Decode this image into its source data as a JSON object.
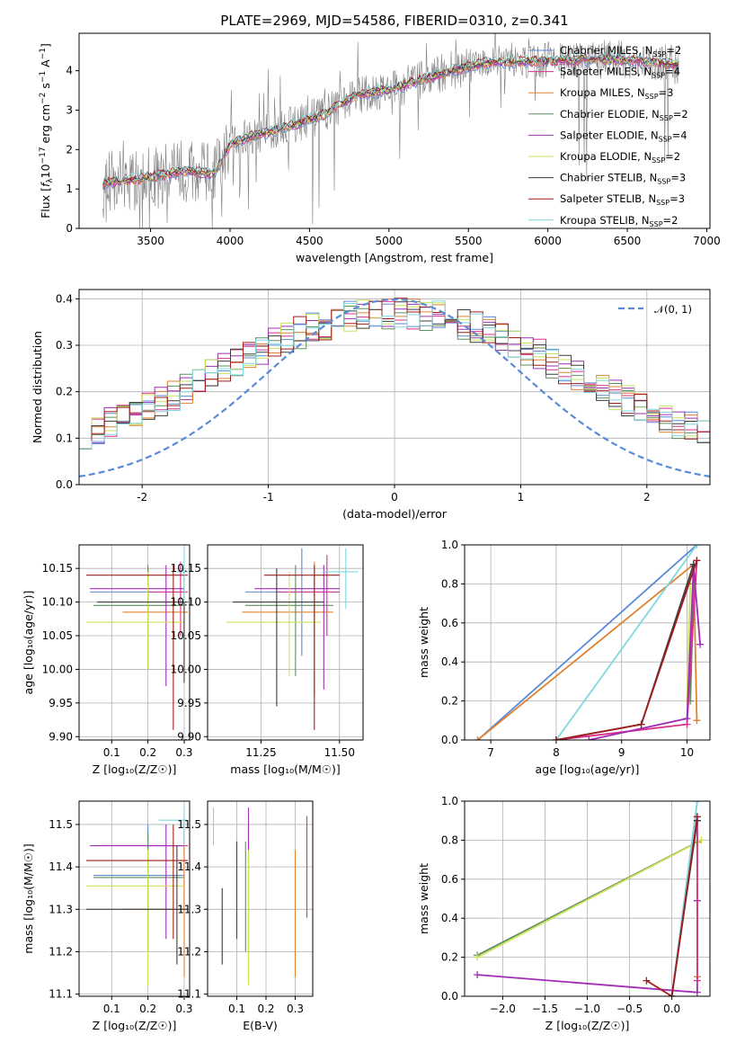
{
  "colors": {
    "chabrier_miles": "#5b8ad6",
    "salpeter_miles": "#d92f8a",
    "kroupa_miles": "#e08330",
    "chabrier_elodie": "#5e8f5e",
    "salpeter_elodie": "#a02db5",
    "kroupa_elodie": "#c9e25a",
    "chabrier_stelib": "#3d3d3d",
    "salpeter_stelib": "#a11c1c",
    "kroupa_stelib": "#7fd8df",
    "data": "#808080",
    "normal": "#5b8ad6"
  },
  "chart_data": [
    {
      "id": "spectrum",
      "type": "line",
      "title": "PLATE=2969, MJD=54586, FIBERID=0310, z=0.341",
      "xlabel": "wavelength [Angstrom, rest frame]",
      "ylabel_parts": [
        "Flux [",
        "f",
        "λ",
        "10",
        "−17",
        " erg cm",
        "−2",
        " s",
        "−1",
        " A",
        "−1",
        "]"
      ],
      "xlim": [
        3050,
        7020
      ],
      "ylim": [
        0,
        4.95
      ],
      "xticks": [
        3500,
        4000,
        4500,
        5000,
        5500,
        6000,
        6500,
        7000
      ],
      "yticks": [
        0,
        1,
        2,
        3,
        4
      ],
      "data_range": [
        3200,
        6830
      ],
      "model_key_points": {
        "x": [
          3200,
          3500,
          3700,
          3900,
          4000,
          4100,
          4300,
          4600,
          4800,
          5000,
          5300,
          5600,
          6000,
          6400,
          6830
        ],
        "y": [
          1.15,
          1.3,
          1.45,
          1.4,
          2.15,
          2.3,
          2.5,
          2.9,
          3.4,
          3.5,
          3.9,
          4.2,
          4.25,
          4.3,
          4.15
        ]
      },
      "legend": [
        {
          "key": "chabrier_miles",
          "text": "Chabrier MILES, N",
          "n": "2"
        },
        {
          "key": "salpeter_miles",
          "text": "Salpeter MILES, N",
          "n": "4"
        },
        {
          "key": "kroupa_miles",
          "text": "Kroupa MILES, N",
          "n": "3"
        },
        {
          "key": "chabrier_elodie",
          "text": "Chabrier ELODIE, N",
          "n": "2"
        },
        {
          "key": "salpeter_elodie",
          "text": "Salpeter ELODIE, N",
          "n": "4"
        },
        {
          "key": "kroupa_elodie",
          "text": "Kroupa ELODIE, N",
          "n": "2"
        },
        {
          "key": "chabrier_stelib",
          "text": "Chabrier STELIB, N",
          "n": "3"
        },
        {
          "key": "salpeter_stelib",
          "text": "Salpeter STELIB, N",
          "n": "3"
        },
        {
          "key": "kroupa_stelib",
          "text": "Kroupa STELIB, N",
          "n": "2"
        }
      ],
      "legend_sub": "SSP",
      "legend_placement": "upper right"
    },
    {
      "id": "residuals",
      "type": "line",
      "title": "",
      "xlabel": "(data-model)/error",
      "ylabel": "Normed distribution",
      "xlim": [
        -2.5,
        2.5
      ],
      "ylim": [
        0,
        0.42
      ],
      "xticks": [
        -2,
        -1,
        0,
        1,
        2
      ],
      "yticks": [
        0.0,
        0.1,
        0.2,
        0.3,
        0.4
      ],
      "ytick_labels": [
        "0.0",
        "0.1",
        "0.2",
        "0.3",
        "0.4"
      ],
      "grid": true,
      "bins": 50,
      "normal_curve": {
        "mean": 0,
        "sigma": 1
      },
      "legend": [
        {
          "text": "𝒩(0, 1)",
          "style": "dashed"
        }
      ],
      "legend_placement": "upper right"
    },
    {
      "id": "age_vs_Z",
      "type": "scatter",
      "xlabel": "Z [log₁₀(Z/Z☉)]",
      "ylabel": "age  [log₁₀(age/yr)]",
      "xlim": [
        0.01,
        0.315
      ],
      "ylim": [
        9.895,
        10.185
      ],
      "xticks": [
        0.1,
        0.2,
        0.3
      ],
      "yticks": [
        9.9,
        9.95,
        10.0,
        10.05,
        10.1,
        10.15
      ],
      "ytick_labels": [
        "9.90",
        "9.95",
        "10.00",
        "10.05",
        "10.10",
        "10.15"
      ],
      "grid": true,
      "points": [
        {
          "k": "chabrier_miles",
          "x": 0.2,
          "y": 10.115,
          "xe": [
            0.04,
            0.3
          ],
          "ye": [
            10.0,
            10.15
          ]
        },
        {
          "k": "salpeter_miles",
          "x": 0.29,
          "y": 10.115,
          "xe": [
            0.2,
            0.31
          ],
          "ye": [
            10.05,
            10.16
          ]
        },
        {
          "k": "kroupa_miles",
          "x": 0.3,
          "y": 10.085,
          "xe": [
            0.13,
            0.31
          ],
          "ye": [
            9.99,
            10.15
          ]
        },
        {
          "k": "chabrier_elodie",
          "x": 0.2,
          "y": 10.095,
          "xe": [
            0.05,
            0.3
          ],
          "ye": [
            10.0,
            10.155
          ]
        },
        {
          "k": "salpeter_elodie",
          "x": 0.25,
          "y": 10.12,
          "xe": [
            0.04,
            0.3
          ],
          "ye": [
            9.975,
            10.155
          ]
        },
        {
          "k": "kroupa_elodie",
          "x": 0.2,
          "y": 10.07,
          "xe": [
            0.03,
            0.3
          ],
          "ye": [
            10.0,
            10.145
          ]
        },
        {
          "k": "chabrier_stelib",
          "x": 0.3,
          "y": 10.1,
          "xe": [
            0.06,
            0.31
          ],
          "ye": [
            9.98,
            10.15
          ]
        },
        {
          "k": "salpeter_stelib",
          "x": 0.27,
          "y": 10.14,
          "xe": [
            0.03,
            0.31
          ],
          "ye": [
            9.91,
            10.155
          ]
        },
        {
          "k": "kroupa_stelib",
          "x": 0.3,
          "y": 10.145,
          "xe": [
            0.28,
            0.31
          ],
          "ye": [
            10.1,
            10.18
          ]
        }
      ]
    },
    {
      "id": "age_vs_mass",
      "type": "scatter",
      "xlabel": "mass [log₁₀(M/M☉)]",
      "ylabel": "",
      "xlim": [
        11.08,
        11.575
      ],
      "ylim": [
        9.895,
        10.185
      ],
      "xticks": [
        11.25,
        11.5
      ],
      "xtick_labels": [
        "11.25",
        "11.50"
      ],
      "yticks": [
        9.9,
        9.95,
        10.0,
        10.05,
        10.1,
        10.15
      ],
      "ytick_labels": [
        "9.90",
        "9.95",
        "10.00",
        "10.05",
        "10.10",
        "10.15"
      ],
      "grid": true,
      "points": [
        {
          "k": "chabrier_miles",
          "x": 11.38,
          "y": 10.115,
          "xe": [
            11.2,
            11.5
          ],
          "ye": [
            10.02,
            10.18
          ]
        },
        {
          "k": "salpeter_miles",
          "x": 11.46,
          "y": 10.115,
          "xe": [
            11.3,
            11.5
          ],
          "ye": [
            10.05,
            10.17
          ]
        },
        {
          "k": "kroupa_miles",
          "x": 11.42,
          "y": 10.085,
          "xe": [
            11.19,
            11.48
          ],
          "ye": [
            9.96,
            10.16
          ]
        },
        {
          "k": "chabrier_elodie",
          "x": 11.36,
          "y": 10.095,
          "xe": [
            11.2,
            11.48
          ],
          "ye": [
            9.99,
            10.155
          ]
        },
        {
          "k": "salpeter_elodie",
          "x": 11.45,
          "y": 10.12,
          "xe": [
            11.23,
            11.5
          ],
          "ye": [
            9.97,
            10.155
          ]
        },
        {
          "k": "kroupa_elodie",
          "x": 11.34,
          "y": 10.07,
          "xe": [
            11.14,
            11.44
          ],
          "ye": [
            9.99,
            10.145
          ]
        },
        {
          "k": "chabrier_stelib",
          "x": 11.3,
          "y": 10.1,
          "xe": [
            11.16,
            11.45
          ],
          "ye": [
            9.945,
            10.15
          ]
        },
        {
          "k": "salpeter_stelib",
          "x": 11.42,
          "y": 10.14,
          "xe": [
            11.26,
            11.5
          ],
          "ye": [
            9.91,
            10.155
          ]
        },
        {
          "k": "kroupa_stelib",
          "x": 11.52,
          "y": 10.145,
          "xe": [
            11.45,
            11.56
          ],
          "ye": [
            10.09,
            10.18
          ]
        }
      ]
    },
    {
      "id": "weight_vs_age",
      "type": "line",
      "xlabel": "age  [log₁₀(age/yr)]",
      "ylabel": "mass weight",
      "xlim": [
        6.6,
        10.35
      ],
      "ylim": [
        0,
        1
      ],
      "xticks": [
        7,
        8,
        9,
        10
      ],
      "yticks": [
        0.0,
        0.2,
        0.4,
        0.6,
        0.8,
        1.0
      ],
      "ytick_labels": [
        "0.0",
        "0.2",
        "0.4",
        "0.6",
        "0.8",
        "1.0"
      ],
      "grid": true,
      "series": [
        {
          "k": "chabrier_miles",
          "x": [
            6.8,
            10.15
          ],
          "y": [
            0.0,
            1.0
          ]
        },
        {
          "k": "kroupa_miles",
          "x": [
            6.8,
            10.1,
            10.15
          ],
          "y": [
            0.0,
            0.9,
            0.1
          ]
        },
        {
          "k": "kroupa_stelib",
          "x": [
            8.0,
            10.15
          ],
          "y": [
            0.0,
            1.0
          ]
        },
        {
          "k": "kroupa_elodie",
          "x": [
            10.0,
            10.05
          ],
          "y": [
            0.2,
            0.8
          ]
        },
        {
          "k": "chabrier_elodie",
          "x": [
            10.05,
            10.1
          ],
          "y": [
            0.2,
            0.8
          ]
        },
        {
          "k": "salpeter_miles",
          "x": [
            8.0,
            10.0,
            10.15
          ],
          "y": [
            0.0,
            0.08,
            0.92
          ]
        },
        {
          "k": "salpeter_elodie",
          "x": [
            8.5,
            10.0,
            10.1,
            10.2
          ],
          "y": [
            0.0,
            0.11,
            0.89,
            0.49
          ]
        },
        {
          "k": "chabrier_stelib",
          "x": [
            8.0,
            9.3,
            10.1
          ],
          "y": [
            0.0,
            0.08,
            0.9
          ]
        },
        {
          "k": "salpeter_stelib",
          "x": [
            8.0,
            9.3,
            10.15
          ],
          "y": [
            0.0,
            0.08,
            0.92
          ]
        }
      ]
    },
    {
      "id": "mass_vs_Z",
      "type": "scatter",
      "xlabel": "Z [log₁₀(Z/Z☉)]",
      "ylabel": "mass [log₁₀(M/M☉)]",
      "xlim": [
        0.01,
        0.315
      ],
      "ylim": [
        11.095,
        11.555
      ],
      "xticks": [
        0.1,
        0.2,
        0.3
      ],
      "yticks": [
        11.1,
        11.2,
        11.3,
        11.4,
        11.5
      ],
      "grid": true,
      "points": [
        {
          "k": "chabrier_miles",
          "x": 0.2,
          "y": 11.38,
          "xe": [
            0.05,
            0.3
          ],
          "ye": [
            11.2,
            11.5
          ]
        },
        {
          "k": "salpeter_miles",
          "x": 0.3,
          "y": 11.45,
          "xe": [
            0.2,
            0.31
          ],
          "ye": [
            11.3,
            11.52
          ]
        },
        {
          "k": "kroupa_miles",
          "x": 0.3,
          "y": 11.3,
          "xe": [
            0.13,
            0.31
          ],
          "ye": [
            11.14,
            11.5
          ]
        },
        {
          "k": "chabrier_elodie",
          "x": 0.2,
          "y": 11.375,
          "xe": [
            0.05,
            0.3
          ],
          "ye": [
            11.2,
            11.48
          ]
        },
        {
          "k": "salpeter_elodie",
          "x": 0.25,
          "y": 11.45,
          "xe": [
            0.04,
            0.3
          ],
          "ye": [
            11.23,
            11.5
          ]
        },
        {
          "k": "kroupa_elodie",
          "x": 0.2,
          "y": 11.355,
          "xe": [
            0.03,
            0.3
          ],
          "ye": [
            11.12,
            11.44
          ]
        },
        {
          "k": "chabrier_stelib",
          "x": 0.28,
          "y": 11.3,
          "xe": [
            0.03,
            0.31
          ],
          "ye": [
            11.17,
            11.45
          ]
        },
        {
          "k": "salpeter_stelib",
          "x": 0.27,
          "y": 11.415,
          "xe": [
            0.03,
            0.31
          ],
          "ye": [
            11.23,
            11.5
          ]
        },
        {
          "k": "kroupa_stelib",
          "x": 0.3,
          "y": 11.51,
          "xe": [
            0.23,
            0.31
          ],
          "ye": [
            11.45,
            11.54
          ]
        }
      ]
    },
    {
      "id": "mass_vs_ebv",
      "type": "scatter",
      "xlabel": "E(B-V)",
      "ylabel": "",
      "xlim": [
        0.0,
        0.36
      ],
      "ylim": [
        11.095,
        11.555
      ],
      "xticks": [
        0.1,
        0.2,
        0.3
      ],
      "yticks": [
        11.1,
        11.2,
        11.3,
        11.4,
        11.5
      ],
      "grid": true,
      "points": [
        {
          "k": "chabrier_miles",
          "x": 0.14,
          "y": 11.38,
          "ye": [
            11.2,
            11.5
          ]
        },
        {
          "k": "salpeter_miles",
          "x": 0.34,
          "y": 11.45,
          "ye": [
            11.28,
            11.52
          ]
        },
        {
          "k": "kroupa_miles",
          "x": 0.3,
          "y": 11.3,
          "ye": [
            11.14,
            11.44
          ]
        },
        {
          "k": "chabrier_elodie",
          "x": 0.13,
          "y": 11.375,
          "ye": [
            11.2,
            11.46
          ]
        },
        {
          "k": "salpeter_elodie",
          "x": 0.14,
          "y": 11.45,
          "ye": [
            11.13,
            11.54
          ]
        },
        {
          "k": "kroupa_elodie",
          "x": 0.14,
          "y": 11.355,
          "ye": [
            11.12,
            11.44
          ]
        },
        {
          "k": "chabrier_stelib",
          "x": 0.05,
          "y": 11.3,
          "ye": [
            11.17,
            11.35
          ]
        },
        {
          "k": "salpeter_stelib",
          "x": 0.1,
          "y": 11.415,
          "ye": [
            11.23,
            11.46
          ]
        },
        {
          "k": "kroupa_stelib",
          "x": 0.02,
          "y": 11.51,
          "ye": [
            11.45,
            11.54
          ]
        }
      ]
    },
    {
      "id": "weight_vs_Z",
      "type": "line",
      "xlabel": "Z [log₁₀(Z/Z☉)]",
      "ylabel": "mass weight",
      "xlim": [
        -2.45,
        0.45
      ],
      "ylim": [
        0,
        1
      ],
      "xticks": [
        -2.0,
        -1.5,
        -1.0,
        -0.5,
        0.0
      ],
      "xtick_labels": [
        "−2.0",
        "−1.5",
        "−1.0",
        "−0.5",
        "0.0"
      ],
      "yticks": [
        0.0,
        0.2,
        0.4,
        0.6,
        0.8,
        1.0
      ],
      "ytick_labels": [
        "0.0",
        "0.2",
        "0.4",
        "0.6",
        "0.8",
        "1.0"
      ],
      "grid": true,
      "series": [
        {
          "k": "chabrier_elodie",
          "x": [
            -2.3,
            0.3
          ],
          "y": [
            0.21,
            0.79
          ]
        },
        {
          "k": "kroupa_elodie",
          "x": [
            -2.3,
            0.35
          ],
          "y": [
            0.2,
            0.8
          ]
        },
        {
          "k": "salpeter_elodie",
          "x": [
            -2.3,
            0.3,
            0.3
          ],
          "y": [
            0.11,
            0.02,
            0.49
          ]
        },
        {
          "k": "kroupa_miles",
          "x": [
            0.3,
            0.3
          ],
          "y": [
            0.1,
            0.9
          ]
        },
        {
          "k": "salpeter_miles",
          "x": [
            0.3,
            0.3
          ],
          "y": [
            0.08,
            0.92
          ]
        },
        {
          "k": "chabrier_miles",
          "x": [
            0.0,
            0.3
          ],
          "y": [
            0.0,
            1.0
          ]
        },
        {
          "k": "kroupa_stelib",
          "x": [
            0.0,
            0.3
          ],
          "y": [
            0.0,
            1.0
          ]
        },
        {
          "k": "chabrier_stelib",
          "x": [
            0.0,
            0.3
          ],
          "y": [
            0.0,
            0.9
          ]
        },
        {
          "k": "salpeter_stelib",
          "x": [
            -0.3,
            0.0,
            0.3
          ],
          "y": [
            0.08,
            0.0,
            0.92
          ]
        }
      ]
    }
  ]
}
